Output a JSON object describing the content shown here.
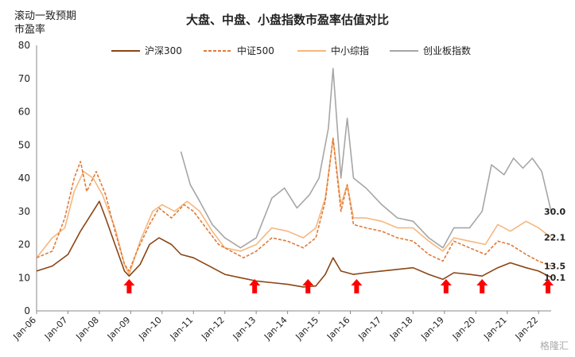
{
  "chart_data": {
    "type": "line",
    "title": "大盘、中盘、小盘指数市盈率估值对比",
    "ylabel": "滚动一致预期\n市盈率",
    "xlabel": "",
    "ylim": [
      0,
      80
    ],
    "yticks": [
      0,
      10,
      20,
      30,
      40,
      50,
      60,
      70,
      80
    ],
    "x_tick_labels": [
      "Jan-06",
      "Jan-07",
      "Jan-08",
      "Jan-09",
      "Jan-10",
      "Jan-11",
      "Jan-12",
      "Jan-13",
      "Jan-14",
      "Jan-15",
      "Jan-16",
      "Jan-17",
      "Jan-18",
      "Jan-19",
      "Jan-20",
      "Jan-21",
      "Jan-22"
    ],
    "x_range": [
      2006.0,
      2022.4
    ],
    "grid": false,
    "legend_position": "top",
    "series": [
      {
        "name": "沪深300",
        "color": "#8B4513",
        "style": "solid",
        "points": [
          [
            2006.0,
            12
          ],
          [
            2006.5,
            13.5
          ],
          [
            2007.0,
            17
          ],
          [
            2007.4,
            24
          ],
          [
            2007.8,
            30
          ],
          [
            2008.0,
            33
          ],
          [
            2008.2,
            28
          ],
          [
            2008.5,
            20
          ],
          [
            2008.8,
            12
          ],
          [
            2008.95,
            10.5
          ],
          [
            2009.3,
            14
          ],
          [
            2009.6,
            20
          ],
          [
            2009.9,
            22
          ],
          [
            2010.3,
            20
          ],
          [
            2010.6,
            17
          ],
          [
            2011.0,
            16
          ],
          [
            2011.5,
            13.5
          ],
          [
            2012.0,
            11
          ],
          [
            2012.5,
            10
          ],
          [
            2013.0,
            9
          ],
          [
            2013.5,
            8.5
          ],
          [
            2014.0,
            8
          ],
          [
            2014.5,
            7.2
          ],
          [
            2014.9,
            7.5
          ],
          [
            2015.2,
            11
          ],
          [
            2015.45,
            16
          ],
          [
            2015.7,
            12
          ],
          [
            2016.1,
            11
          ],
          [
            2016.5,
            11.5
          ],
          [
            2017.0,
            12
          ],
          [
            2017.5,
            12.5
          ],
          [
            2018.0,
            13
          ],
          [
            2018.5,
            11
          ],
          [
            2018.95,
            9.5
          ],
          [
            2019.3,
            11.5
          ],
          [
            2019.8,
            11
          ],
          [
            2020.2,
            10.5
          ],
          [
            2020.7,
            13
          ],
          [
            2021.1,
            14.5
          ],
          [
            2021.6,
            13
          ],
          [
            2022.0,
            12
          ],
          [
            2022.4,
            10.1
          ]
        ]
      },
      {
        "name": "中证500",
        "color": "#E07B39",
        "style": "dashed",
        "points": [
          [
            2006.0,
            16
          ],
          [
            2006.5,
            18
          ],
          [
            2006.9,
            28
          ],
          [
            2007.2,
            40
          ],
          [
            2007.4,
            45
          ],
          [
            2007.6,
            36
          ],
          [
            2007.9,
            42
          ],
          [
            2008.2,
            35
          ],
          [
            2008.5,
            24
          ],
          [
            2008.8,
            14
          ],
          [
            2008.95,
            12
          ],
          [
            2009.2,
            18
          ],
          [
            2009.6,
            26
          ],
          [
            2009.9,
            31
          ],
          [
            2010.3,
            28
          ],
          [
            2010.7,
            32
          ],
          [
            2011.0,
            30
          ],
          [
            2011.4,
            25
          ],
          [
            2011.8,
            20
          ],
          [
            2012.2,
            18
          ],
          [
            2012.6,
            16
          ],
          [
            2013.0,
            18
          ],
          [
            2013.5,
            22
          ],
          [
            2014.0,
            21
          ],
          [
            2014.5,
            19
          ],
          [
            2014.9,
            22
          ],
          [
            2015.2,
            33
          ],
          [
            2015.45,
            52
          ],
          [
            2015.7,
            30
          ],
          [
            2015.9,
            38
          ],
          [
            2016.1,
            26
          ],
          [
            2016.5,
            25
          ],
          [
            2017.0,
            24
          ],
          [
            2017.5,
            22
          ],
          [
            2018.0,
            21
          ],
          [
            2018.5,
            17
          ],
          [
            2018.95,
            15
          ],
          [
            2019.3,
            21
          ],
          [
            2019.8,
            19
          ],
          [
            2020.3,
            17
          ],
          [
            2020.7,
            21
          ],
          [
            2021.1,
            20
          ],
          [
            2021.6,
            17
          ],
          [
            2022.0,
            15
          ],
          [
            2022.4,
            13.5
          ]
        ]
      },
      {
        "name": "中小综指",
        "color": "#F5B77E",
        "style": "solid",
        "points": [
          [
            2006.0,
            16
          ],
          [
            2006.5,
            22
          ],
          [
            2006.9,
            25
          ],
          [
            2007.2,
            36
          ],
          [
            2007.5,
            42
          ],
          [
            2007.8,
            40
          ],
          [
            2008.1,
            35
          ],
          [
            2008.5,
            25
          ],
          [
            2008.8,
            14
          ],
          [
            2008.95,
            11
          ],
          [
            2009.3,
            21
          ],
          [
            2009.7,
            30
          ],
          [
            2010.0,
            32
          ],
          [
            2010.4,
            30
          ],
          [
            2010.8,
            33
          ],
          [
            2011.2,
            30
          ],
          [
            2011.6,
            24
          ],
          [
            2012.0,
            19
          ],
          [
            2012.5,
            18
          ],
          [
            2013.0,
            20
          ],
          [
            2013.5,
            25
          ],
          [
            2014.0,
            24
          ],
          [
            2014.5,
            22
          ],
          [
            2014.9,
            25
          ],
          [
            2015.2,
            34
          ],
          [
            2015.45,
            52
          ],
          [
            2015.7,
            32
          ],
          [
            2015.9,
            38
          ],
          [
            2016.1,
            28
          ],
          [
            2016.5,
            28
          ],
          [
            2017.0,
            27
          ],
          [
            2017.5,
            25
          ],
          [
            2018.0,
            25
          ],
          [
            2018.5,
            21
          ],
          [
            2018.95,
            18
          ],
          [
            2019.3,
            22
          ],
          [
            2019.8,
            21
          ],
          [
            2020.3,
            20
          ],
          [
            2020.7,
            26
          ],
          [
            2021.1,
            24
          ],
          [
            2021.6,
            27
          ],
          [
            2022.0,
            25
          ],
          [
            2022.4,
            22.1
          ]
        ]
      },
      {
        "name": "创业板指数",
        "color": "#A6A6A6",
        "style": "solid",
        "points": [
          [
            2010.6,
            48
          ],
          [
            2010.9,
            38
          ],
          [
            2011.2,
            33
          ],
          [
            2011.6,
            26
          ],
          [
            2012.0,
            22
          ],
          [
            2012.5,
            19
          ],
          [
            2013.0,
            22
          ],
          [
            2013.5,
            34
          ],
          [
            2013.9,
            37
          ],
          [
            2014.3,
            31
          ],
          [
            2014.7,
            35
          ],
          [
            2015.0,
            40
          ],
          [
            2015.3,
            55
          ],
          [
            2015.45,
            73
          ],
          [
            2015.7,
            40
          ],
          [
            2015.9,
            58
          ],
          [
            2016.1,
            40
          ],
          [
            2016.5,
            37
          ],
          [
            2017.0,
            32
          ],
          [
            2017.5,
            28
          ],
          [
            2018.0,
            27
          ],
          [
            2018.5,
            22
          ],
          [
            2018.95,
            19
          ],
          [
            2019.3,
            25
          ],
          [
            2019.8,
            25
          ],
          [
            2020.2,
            30
          ],
          [
            2020.5,
            44
          ],
          [
            2020.9,
            41
          ],
          [
            2021.2,
            46
          ],
          [
            2021.5,
            43
          ],
          [
            2021.8,
            46
          ],
          [
            2022.1,
            42
          ],
          [
            2022.4,
            30
          ]
        ]
      }
    ],
    "end_labels": [
      {
        "text": "30.0",
        "y": 30.0
      },
      {
        "text": "22.1",
        "y": 22.1
      },
      {
        "text": "13.5",
        "y": 13.5
      },
      {
        "text": "10.1",
        "y": 10.1
      }
    ],
    "arrow_markers_x": [
      2008.95,
      2012.95,
      2014.65,
      2016.2,
      2019.05,
      2020.2,
      2022.3
    ],
    "arrow_color": "#FF0000"
  },
  "watermark": "格隆汇"
}
